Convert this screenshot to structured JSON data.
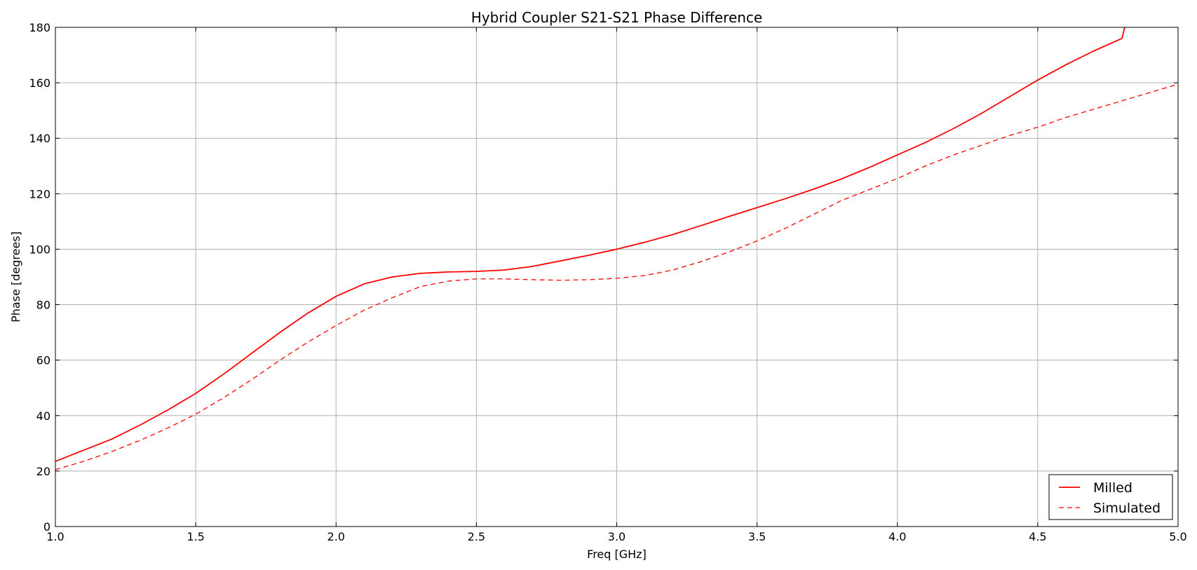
{
  "chart_data": {
    "type": "line",
    "title": "Hybrid Coupler S21-S21 Phase Difference",
    "xlabel": "Freq [GHz]",
    "ylabel": "Phase [degrees]",
    "xlim": [
      1.0,
      5.0
    ],
    "ylim": [
      0,
      180
    ],
    "x_ticks": [
      1.0,
      1.5,
      2.0,
      2.5,
      3.0,
      3.5,
      4.0,
      4.5,
      5.0
    ],
    "x_tick_labels": [
      "1.0",
      "1.5",
      "2.0",
      "2.5",
      "3.0",
      "3.5",
      "4.0",
      "4.5",
      "5.0"
    ],
    "y_ticks": [
      0,
      20,
      40,
      60,
      80,
      100,
      120,
      140,
      160,
      180
    ],
    "y_tick_labels": [
      "0",
      "20",
      "40",
      "60",
      "80",
      "100",
      "120",
      "140",
      "160",
      "180"
    ],
    "grid": true,
    "legend_position": "lower-right",
    "color": "#ff0000",
    "series": [
      {
        "name": "Milled",
        "style": "solid",
        "x": [
          1.0,
          1.1,
          1.2,
          1.3,
          1.4,
          1.5,
          1.6,
          1.7,
          1.8,
          1.9,
          2.0,
          2.1,
          2.2,
          2.3,
          2.4,
          2.5,
          2.6,
          2.7,
          2.8,
          2.9,
          3.0,
          3.1,
          3.2,
          3.3,
          3.4,
          3.5,
          3.6,
          3.7,
          3.8,
          3.9,
          4.0,
          4.1,
          4.2,
          4.3,
          4.4,
          4.5,
          4.6,
          4.7,
          4.8,
          4.81
        ],
        "y": [
          23.5,
          27.5,
          31.5,
          36.5,
          42.0,
          48.0,
          55.0,
          62.5,
          70.0,
          77.0,
          83.0,
          87.5,
          90.0,
          91.3,
          91.8,
          92.0,
          92.5,
          93.8,
          95.8,
          97.8,
          100.0,
          102.5,
          105.3,
          108.5,
          111.8,
          115.0,
          118.2,
          121.6,
          125.3,
          129.5,
          134.0,
          138.5,
          143.5,
          149.0,
          155.0,
          161.0,
          166.5,
          171.5,
          176.0,
          180.0
        ]
      },
      {
        "name": "Simulated",
        "style": "dashed",
        "x": [
          1.0,
          1.1,
          1.2,
          1.3,
          1.4,
          1.5,
          1.6,
          1.7,
          1.8,
          1.9,
          2.0,
          2.1,
          2.2,
          2.3,
          2.4,
          2.5,
          2.6,
          2.7,
          2.8,
          2.9,
          3.0,
          3.1,
          3.2,
          3.3,
          3.4,
          3.5,
          3.6,
          3.7,
          3.8,
          3.9,
          4.0,
          4.1,
          4.2,
          4.3,
          4.4,
          4.5,
          4.6,
          4.7,
          4.8,
          4.9,
          5.0
        ],
        "y": [
          20.5,
          23.5,
          27.0,
          31.0,
          35.5,
          40.5,
          46.5,
          53.0,
          60.0,
          66.5,
          72.5,
          78.0,
          82.5,
          86.5,
          88.5,
          89.3,
          89.3,
          89.0,
          88.8,
          89.0,
          89.5,
          90.5,
          92.5,
          95.5,
          99.0,
          103.0,
          107.5,
          112.5,
          117.5,
          121.5,
          125.5,
          130.0,
          134.0,
          137.5,
          141.0,
          144.0,
          147.5,
          150.5,
          153.5,
          156.5,
          159.5
        ]
      }
    ]
  }
}
